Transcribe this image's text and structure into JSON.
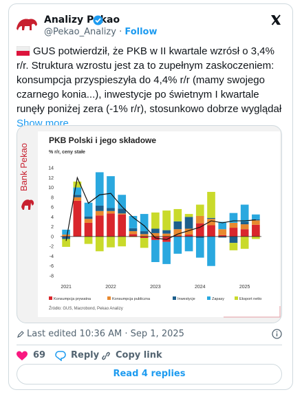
{
  "tweet": {
    "name": "Analizy Pekao",
    "handle": "@Pekao_Analizy",
    "separator": "·",
    "follow": "Follow",
    "text": "GUS potwierdził, że PKB w II kwartale wzrósł o 3,4% r/r. Struktura wzrostu jest za to zupełnym zaskoczeniem: konsumpcja przyspieszyła do 4,4% r/r (mamy swojego czarnego konia...), inwestycje po świetnym I kwartale runęły poniżej zera (-1% r/r), stosunkowo dobrze wyglądał",
    "show_more": "Show more",
    "timestamp": "Last edited 10:36 AM · Sep 1, 2025",
    "likes": "69",
    "reply": "Reply",
    "copy_link": "Copy link",
    "read_replies": "Read 4 replies"
  },
  "chart_data": {
    "type": "bar",
    "stacked": true,
    "brand": "Bank Pekao",
    "title": "PKB Polski i jego składowe",
    "subtitle": "% r/r, ceny stałe",
    "source": "Źródło: GUS, Macrobond, Pekao Analizy",
    "categories": [
      "2021",
      null,
      null,
      null,
      "2022",
      null,
      null,
      null,
      "2023",
      null,
      null,
      null,
      "2024",
      null,
      null,
      null,
      "2025",
      null
    ],
    "ylim": [
      -8,
      14
    ],
    "yticks": [
      -8,
      -6,
      -4,
      -2,
      0,
      2,
      4,
      6,
      8,
      10,
      12,
      14
    ],
    "series": [
      {
        "name": "Konsumpcja prywatna",
        "color": "#d9262c",
        "values": [
          0.1,
          7.3,
          2.8,
          4.3,
          4.7,
          4.5,
          0.5,
          -0.3,
          -0.7,
          -1.1,
          0.2,
          0.4,
          2.7,
          2.3,
          0.3,
          1.8,
          1.5,
          2.4
        ]
      },
      {
        "name": "Konsumpcja publiczna",
        "color": "#e8892f",
        "values": [
          0.3,
          0.7,
          0.8,
          0.9,
          0.5,
          0.2,
          0.6,
          0.5,
          0.7,
          0.6,
          1.3,
          1.2,
          1.5,
          1.3,
          1.2,
          1.0,
          1.0,
          0.9
        ]
      },
      {
        "name": "Inwestycje",
        "color": "#1d5f8c",
        "values": [
          -0.5,
          0.5,
          0.5,
          1.1,
          0.6,
          1.0,
          0.6,
          0.6,
          0.9,
          0.7,
          1.6,
          2.4,
          -0.3,
          0.2,
          -0.2,
          -1.3,
          0.5,
          0.2
        ]
      },
      {
        "name": "Zapasy",
        "color": "#2aa8df",
        "values": [
          1.0,
          1.5,
          2.8,
          6.8,
          6.5,
          2.8,
          2.5,
          3.5,
          -4.5,
          -4.5,
          -3.5,
          -3.0,
          -4.0,
          -6.0,
          1.5,
          2.0,
          3.5,
          1.0
        ]
      },
      {
        "name": "Eksport netto",
        "color": "#c9da2b",
        "values": [
          -1.6,
          1.2,
          -1.5,
          -3.0,
          -2.2,
          -2.0,
          -0.1,
          -2.0,
          3.3,
          4.0,
          2.5,
          0.6,
          2.3,
          5.3,
          0.0,
          -1.5,
          -2.5,
          -0.5
        ]
      }
    ],
    "line": {
      "type": "line",
      "color": "#111111",
      "values": [
        -0.9,
        12.0,
        6.8,
        8.5,
        8.8,
        6.1,
        3.9,
        2.2,
        -0.3,
        -0.6,
        0.5,
        1.2,
        1.9,
        3.2,
        2.8,
        3.2,
        3.2,
        3.4
      ]
    }
  }
}
